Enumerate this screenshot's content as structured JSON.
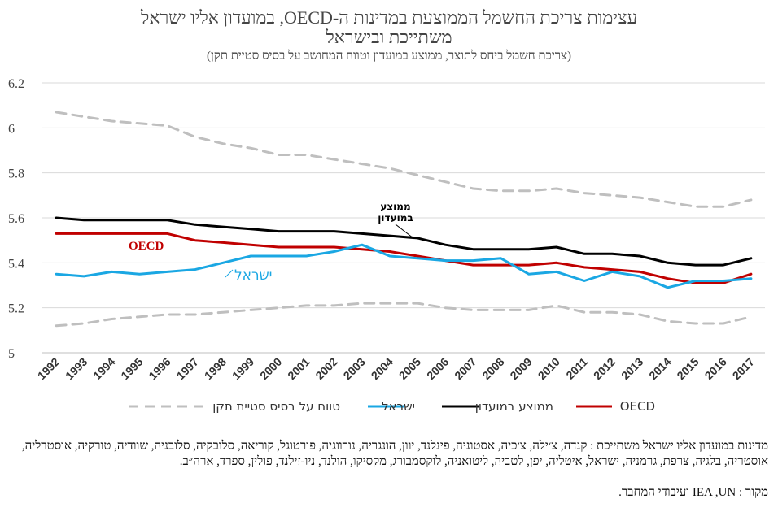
{
  "chart_data": {
    "type": "line",
    "title_lines": [
      "עצימות צריכת החשמל הממוצעת במדינות ה-OECD, במועדון אליו ישראל",
      "משתייכת ובישראל"
    ],
    "subtitle": "(צריכת חשמל ביחס לתוצר, ממוצע במועדון וטווח המחושב על בסיס סטיית תקן)",
    "x": [
      "1992",
      "1993",
      "1994",
      "1995",
      "1996",
      "1997",
      "1998",
      "1999",
      "2000",
      "2001",
      "2002",
      "2003",
      "2004",
      "2005",
      "2006",
      "2007",
      "2008",
      "2009",
      "2010",
      "2011",
      "2012",
      "2013",
      "2014",
      "2015",
      "2016",
      "2017"
    ],
    "ylim": [
      5,
      6.2
    ],
    "yticks": [
      "5",
      "5.2",
      "5.4",
      "5.6",
      "5.8",
      "6",
      "6.2"
    ],
    "grid": true,
    "legend_position": "bottom",
    "series": [
      {
        "name": "טווח על בסיס סטיית תקן",
        "color": "#bfbfbf",
        "style": "dashed",
        "values": [
          6.07,
          6.05,
          6.03,
          6.02,
          6.01,
          5.96,
          5.93,
          5.91,
          5.88,
          5.88,
          5.86,
          5.84,
          5.82,
          5.79,
          5.76,
          5.73,
          5.72,
          5.72,
          5.73,
          5.71,
          5.7,
          5.69,
          5.67,
          5.65,
          5.65,
          5.68
        ]
      },
      {
        "name": "",
        "color": "#bfbfbf",
        "style": "dashed",
        "values": [
          5.12,
          5.13,
          5.15,
          5.16,
          5.17,
          5.17,
          5.18,
          5.19,
          5.2,
          5.21,
          5.21,
          5.22,
          5.22,
          5.22,
          5.2,
          5.19,
          5.19,
          5.19,
          5.21,
          5.18,
          5.18,
          5.17,
          5.14,
          5.13,
          5.13,
          5.16
        ]
      },
      {
        "name": "ממוצע במועדון",
        "color": "#000000",
        "style": "solid",
        "values": [
          5.6,
          5.59,
          5.59,
          5.59,
          5.59,
          5.57,
          5.56,
          5.55,
          5.54,
          5.54,
          5.54,
          5.53,
          5.52,
          5.51,
          5.48,
          5.46,
          5.46,
          5.46,
          5.47,
          5.44,
          5.44,
          5.43,
          5.4,
          5.39,
          5.39,
          5.42
        ]
      },
      {
        "name": "OECD",
        "color": "#c00000",
        "style": "solid",
        "values": [
          5.53,
          5.53,
          5.53,
          5.53,
          5.53,
          5.5,
          5.49,
          5.48,
          5.47,
          5.47,
          5.47,
          5.46,
          5.45,
          5.43,
          5.41,
          5.39,
          5.39,
          5.39,
          5.4,
          5.38,
          5.37,
          5.36,
          5.33,
          5.31,
          5.31,
          5.35
        ]
      },
      {
        "name": "ישראל",
        "color": "#1aa7e3",
        "style": "solid",
        "values": [
          5.35,
          5.34,
          5.36,
          5.35,
          5.36,
          5.37,
          5.4,
          5.43,
          5.43,
          5.43,
          5.45,
          5.48,
          5.43,
          5.42,
          5.41,
          5.41,
          5.42,
          5.35,
          5.36,
          5.32,
          5.36,
          5.34,
          5.29,
          5.32,
          5.32,
          5.33
        ]
      }
    ],
    "annotations": [
      {
        "text_lines": [
          "ממוצע",
          "במועדון"
        ],
        "color": "#000000"
      },
      {
        "text": "OECD",
        "color": "#c00000"
      },
      {
        "text": "ישראל",
        "color": "#1aa7e3"
      }
    ]
  },
  "notes": {
    "members": "מדינות במועדון אליו ישראל משתייכת : קנדה, צ׳ילה, צ׳כיה, אסטוניה, פינלנד, יוון, הונגריה, נורווגיה, פורטוגל, קוריאה, סלובקיה, סלובניה, שוודיה, טורקיה, אוסטרליה, אוסטריה, בלגיה, צרפת, גרמניה, ישראל, איטליה, יפן, לטביה, ליטואניה, לוקסמבורג, מקסיקו, הולנד, ניו-זילנד, פולין, ספרד, ארה״ב.",
    "source": "מקור : IEA ,UN ועיבודי המחבר."
  }
}
